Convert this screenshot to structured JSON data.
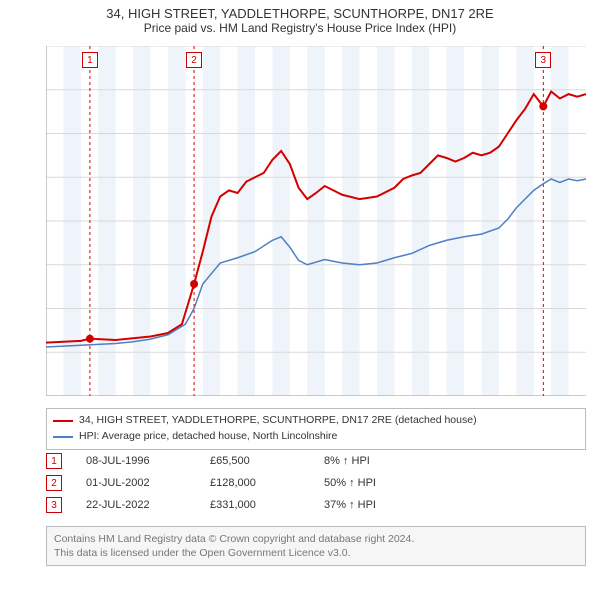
{
  "title": "34, HIGH STREET, YADDLETHORPE, SCUNTHORPE, DN17 2RE",
  "subtitle": "Price paid vs. HM Land Registry's House Price Index (HPI)",
  "chart": {
    "type": "line",
    "background_color": "#ffffff",
    "grid_color": "#d9d9d9",
    "band_color": "#eef4fa",
    "x": {
      "min": 1994,
      "max": 2025,
      "step": 1
    },
    "y": {
      "min": 0,
      "max": 400000,
      "step": 50000,
      "prefix": "£",
      "suffix": "K",
      "divisor": 1000
    },
    "series": [
      {
        "key": "property",
        "label": "34, HIGH STREET, YADDLETHORPE, SCUNTHORPE, DN17 2RE (detached house)",
        "color": "#d40000",
        "width": 2
      },
      {
        "key": "hpi",
        "label": "HPI: Average price, detached house, North Lincolnshire",
        "color": "#4f7fc4",
        "width": 1.5
      }
    ],
    "data": {
      "property": [
        [
          1994,
          61000
        ],
        [
          1995,
          62000
        ],
        [
          1996,
          63000
        ],
        [
          1996.52,
          65500
        ],
        [
          1997,
          65000
        ],
        [
          1998,
          64000
        ],
        [
          1999,
          66000
        ],
        [
          2000,
          68000
        ],
        [
          2001,
          72000
        ],
        [
          2001.8,
          82000
        ],
        [
          2002,
          95000
        ],
        [
          2002.5,
          128000
        ],
        [
          2003,
          165000
        ],
        [
          2003.5,
          205000
        ],
        [
          2004,
          228000
        ],
        [
          2004.5,
          235000
        ],
        [
          2005,
          232000
        ],
        [
          2005.5,
          245000
        ],
        [
          2006,
          250000
        ],
        [
          2006.5,
          255000
        ],
        [
          2007,
          270000
        ],
        [
          2007.5,
          280000
        ],
        [
          2008,
          265000
        ],
        [
          2008.5,
          238000
        ],
        [
          2009,
          225000
        ],
        [
          2009.5,
          232000
        ],
        [
          2010,
          240000
        ],
        [
          2010.5,
          235000
        ],
        [
          2011,
          230000
        ],
        [
          2012,
          225000
        ],
        [
          2013,
          228000
        ],
        [
          2014,
          238000
        ],
        [
          2014.5,
          248000
        ],
        [
          2015,
          252000
        ],
        [
          2015.5,
          255000
        ],
        [
          2016,
          265000
        ],
        [
          2016.5,
          275000
        ],
        [
          2017,
          272000
        ],
        [
          2017.5,
          268000
        ],
        [
          2018,
          272000
        ],
        [
          2018.5,
          278000
        ],
        [
          2019,
          275000
        ],
        [
          2019.5,
          278000
        ],
        [
          2020,
          285000
        ],
        [
          2020.5,
          300000
        ],
        [
          2021,
          315000
        ],
        [
          2021.5,
          328000
        ],
        [
          2022,
          345000
        ],
        [
          2022.55,
          331000
        ],
        [
          2023,
          348000
        ],
        [
          2023.5,
          340000
        ],
        [
          2024,
          345000
        ],
        [
          2024.5,
          342000
        ],
        [
          2025,
          345000
        ]
      ],
      "hpi": [
        [
          1994,
          56000
        ],
        [
          1995,
          57000
        ],
        [
          1996,
          58000
        ],
        [
          1997,
          59000
        ],
        [
          1998,
          60000
        ],
        [
          1999,
          62000
        ],
        [
          2000,
          65000
        ],
        [
          2001,
          70000
        ],
        [
          2002,
          82000
        ],
        [
          2002.5,
          100000
        ],
        [
          2003,
          128000
        ],
        [
          2004,
          152000
        ],
        [
          2005,
          158000
        ],
        [
          2006,
          165000
        ],
        [
          2007,
          178000
        ],
        [
          2007.5,
          182000
        ],
        [
          2008,
          170000
        ],
        [
          2008.5,
          155000
        ],
        [
          2009,
          150000
        ],
        [
          2010,
          156000
        ],
        [
          2011,
          152000
        ],
        [
          2012,
          150000
        ],
        [
          2013,
          152000
        ],
        [
          2014,
          158000
        ],
        [
          2015,
          163000
        ],
        [
          2016,
          172000
        ],
        [
          2017,
          178000
        ],
        [
          2018,
          182000
        ],
        [
          2019,
          185000
        ],
        [
          2020,
          192000
        ],
        [
          2020.5,
          202000
        ],
        [
          2021,
          215000
        ],
        [
          2022,
          235000
        ],
        [
          2022.5,
          242000
        ],
        [
          2023,
          248000
        ],
        [
          2023.5,
          244000
        ],
        [
          2024,
          248000
        ],
        [
          2024.5,
          246000
        ],
        [
          2025,
          248000
        ]
      ]
    },
    "sales": [
      {
        "n": "1",
        "year": 1996.52,
        "price": 65500,
        "date": "08-JUL-1996",
        "price_label": "£65,500",
        "hpi_pct": "8% ↑ HPI"
      },
      {
        "n": "2",
        "year": 2002.5,
        "price": 128000,
        "date": "01-JUL-2002",
        "price_label": "£128,000",
        "hpi_pct": "50% ↑ HPI"
      },
      {
        "n": "3",
        "year": 2022.55,
        "price": 331000,
        "date": "22-JUL-2022",
        "price_label": "£331,000",
        "hpi_pct": "37% ↑ HPI"
      }
    ]
  },
  "footer": {
    "line1": "Contains HM Land Registry data © Crown copyright and database right 2024.",
    "line2": "This data is licensed under the Open Government Licence v3.0."
  }
}
